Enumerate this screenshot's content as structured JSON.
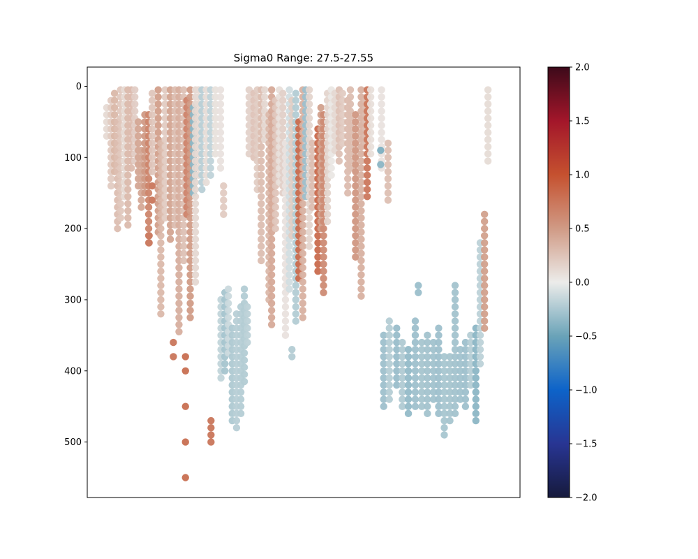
{
  "chart_data": {
    "type": "scatter",
    "title": "Sigma0 Range: 27.5-27.55",
    "xlabel": "",
    "ylabel": "",
    "yaxis_inverted": true,
    "ylim": [
      578,
      -27
    ],
    "xlim": [
      0,
      100
    ],
    "x_ticks": "none",
    "y_ticks": [
      0,
      100,
      200,
      300,
      400,
      500
    ],
    "y_tick_labels": [
      "0",
      "100",
      "200",
      "300",
      "400",
      "500"
    ],
    "grid": false,
    "colorbar": {
      "range": [
        -2.0,
        2.0
      ],
      "ticks": [
        2.0,
        1.5,
        1.0,
        0.5,
        0.0,
        -0.5,
        -1.0,
        -1.5,
        -2.0
      ],
      "tick_labels": [
        "2.0",
        "1.5",
        "1.0",
        "0.5",
        "0.0",
        "−0.5",
        "−1.0",
        "−1.5",
        "−2.0"
      ],
      "colormap": "diverging blue-white-red (balance)",
      "stops": [
        {
          "v": -2.0,
          "color": "#161a3c"
        },
        {
          "v": -1.5,
          "color": "#283593"
        },
        {
          "v": -1.0,
          "color": "#0d63c9"
        },
        {
          "v": -0.5,
          "color": "#6aa3b8"
        },
        {
          "v": 0.0,
          "color": "#ececea"
        },
        {
          "v": 0.5,
          "color": "#d09a85"
        },
        {
          "v": 1.0,
          "color": "#c5512f"
        },
        {
          "v": 1.5,
          "color": "#a3162a"
        },
        {
          "v": 2.0,
          "color": "#3d0a1a"
        }
      ]
    },
    "profiles": [
      {
        "x": 4.5,
        "top": 30,
        "bottom": 70,
        "value": 0.15
      },
      {
        "x": 5.5,
        "top": 20,
        "bottom": 140,
        "value": 0.2
      },
      {
        "x": 6.3,
        "top": 10,
        "bottom": 120,
        "value": 0.28
      },
      {
        "x": 7.0,
        "top": 50,
        "bottom": 200,
        "value": 0.3
      },
      {
        "x": 7.7,
        "top": 5,
        "bottom": 185,
        "value": 0.2
      },
      {
        "x": 8.6,
        "top": 5,
        "bottom": 160,
        "value": 0.15
      },
      {
        "x": 9.4,
        "top": 5,
        "bottom": 200,
        "value": 0.3
      },
      {
        "x": 10.2,
        "top": 5,
        "bottom": 120,
        "value": 0.25
      },
      {
        "x": 11.0,
        "top": 5,
        "bottom": 110,
        "value": 0.2
      },
      {
        "x": 11.8,
        "top": 50,
        "bottom": 140,
        "value": 0.4
      },
      {
        "x": 12.5,
        "top": 90,
        "bottom": 170,
        "value": 0.45
      },
      {
        "x": 13.3,
        "top": 40,
        "bottom": 150,
        "value": 0.5
      },
      {
        "x": 14.2,
        "top": 40,
        "bottom": 220,
        "value": 0.6
      },
      {
        "x": 15.0,
        "top": 10,
        "bottom": 120,
        "value": 0.25
      },
      {
        "x": 16.4,
        "top": 5,
        "bottom": 210,
        "value": 0.45
      },
      {
        "x": 17.0,
        "top": 80,
        "bottom": 320,
        "value": 0.35
      },
      {
        "x": 18.0,
        "top": 5,
        "bottom": 190,
        "value": 0.2
      },
      {
        "x": 19.2,
        "top": 5,
        "bottom": 220,
        "value": 0.4
      },
      {
        "x": 20.3,
        "top": 5,
        "bottom": 200,
        "value": 0.3
      },
      {
        "x": 21.2,
        "top": 5,
        "bottom": 350,
        "value": 0.35
      },
      {
        "x": 22.3,
        "top": 5,
        "bottom": 250,
        "value": 0.3
      },
      {
        "x": 23.0,
        "top": 20,
        "bottom": 180,
        "value": 0.65
      },
      {
        "x": 23.8,
        "top": 5,
        "bottom": 330,
        "value": 0.45
      },
      {
        "x": 24.5,
        "top": 30,
        "bottom": 150,
        "value": -0.35
      },
      {
        "x": 25.0,
        "top": 5,
        "bottom": 280,
        "value": 0.1
      },
      {
        "x": 25.7,
        "top": 5,
        "bottom": 130,
        "value": 0.15
      },
      {
        "x": 26.5,
        "top": 5,
        "bottom": 150,
        "value": -0.2
      },
      {
        "x": 27.5,
        "top": 5,
        "bottom": 140,
        "value": 0.05
      },
      {
        "x": 28.5,
        "top": 5,
        "bottom": 130,
        "value": -0.15
      },
      {
        "x": 29.6,
        "top": 5,
        "bottom": 100,
        "value": 0.05
      },
      {
        "x": 30.8,
        "top": 5,
        "bottom": 120,
        "value": 0.1
      },
      {
        "x": 31.5,
        "top": 140,
        "bottom": 180,
        "value": 0.2
      },
      {
        "x": 30.9,
        "top": 300,
        "bottom": 410,
        "value": -0.2
      },
      {
        "x": 31.8,
        "top": 290,
        "bottom": 400,
        "value": -0.25
      },
      {
        "x": 32.6,
        "top": 285,
        "bottom": 380,
        "value": -0.15
      },
      {
        "x": 33.5,
        "top": 340,
        "bottom": 470,
        "value": -0.2
      },
      {
        "x": 34.5,
        "top": 320,
        "bottom": 480,
        "value": -0.2
      },
      {
        "x": 35.5,
        "top": 310,
        "bottom": 460,
        "value": -0.25
      },
      {
        "x": 36.3,
        "top": 285,
        "bottom": 420,
        "value": -0.2
      },
      {
        "x": 37.0,
        "top": 310,
        "bottom": 360,
        "value": -0.2
      },
      {
        "x": 37.4,
        "top": 5,
        "bottom": 100,
        "value": 0.2
      },
      {
        "x": 38.5,
        "top": 10,
        "bottom": 100,
        "value": 0.25
      },
      {
        "x": 39.3,
        "top": 5,
        "bottom": 150,
        "value": 0.15
      },
      {
        "x": 40.2,
        "top": 5,
        "bottom": 250,
        "value": 0.3
      },
      {
        "x": 41.0,
        "top": 5,
        "bottom": 80,
        "value": 0.1
      },
      {
        "x": 42.0,
        "top": 40,
        "bottom": 300,
        "value": 0.35
      },
      {
        "x": 42.6,
        "top": 5,
        "bottom": 340,
        "value": 0.4
      },
      {
        "x": 43.5,
        "top": 20,
        "bottom": 200,
        "value": 0.2
      },
      {
        "x": 44.4,
        "top": 5,
        "bottom": 140,
        "value": 0.1
      },
      {
        "x": 45.2,
        "top": 10,
        "bottom": 150,
        "value": 0.15
      },
      {
        "x": 45.8,
        "top": 80,
        "bottom": 350,
        "value": 0.1
      },
      {
        "x": 46.7,
        "top": 5,
        "bottom": 290,
        "value": -0.1
      },
      {
        "x": 47.3,
        "top": 20,
        "bottom": 210,
        "value": 0.15
      },
      {
        "x": 48.2,
        "top": 10,
        "bottom": 330,
        "value": -0.2
      },
      {
        "x": 48.9,
        "top": 50,
        "bottom": 270,
        "value": 0.8
      },
      {
        "x": 49.8,
        "top": 5,
        "bottom": 330,
        "value": 0.4
      },
      {
        "x": 50.5,
        "top": 5,
        "bottom": 160,
        "value": -0.3
      },
      {
        "x": 51.3,
        "top": 5,
        "bottom": 230,
        "value": 0.1
      },
      {
        "x": 52.0,
        "top": 80,
        "bottom": 170,
        "value": 0.3
      },
      {
        "x": 53.3,
        "top": 60,
        "bottom": 260,
        "value": 0.8
      },
      {
        "x": 54.0,
        "top": 30,
        "bottom": 200,
        "value": 0.5
      },
      {
        "x": 54.6,
        "top": 40,
        "bottom": 290,
        "value": 0.6
      },
      {
        "x": 55.5,
        "top": 10,
        "bottom": 190,
        "value": 0.1
      },
      {
        "x": 56.4,
        "top": 5,
        "bottom": 130,
        "value": 0.05
      },
      {
        "x": 57.2,
        "top": 10,
        "bottom": 90,
        "value": 0.1
      },
      {
        "x": 58.2,
        "top": 5,
        "bottom": 110,
        "value": 0.3
      },
      {
        "x": 59.0,
        "top": 10,
        "bottom": 80,
        "value": 0.2
      },
      {
        "x": 60.2,
        "top": 20,
        "bottom": 150,
        "value": 0.25
      },
      {
        "x": 60.8,
        "top": 5,
        "bottom": 120,
        "value": 0.3
      },
      {
        "x": 62.0,
        "top": 40,
        "bottom": 240,
        "value": 0.5
      },
      {
        "x": 63.3,
        "top": 5,
        "bottom": 300,
        "value": 0.4
      },
      {
        "x": 64.3,
        "top": 20,
        "bottom": 80,
        "value": 0.3
      },
      {
        "x": 64.7,
        "top": 5,
        "bottom": 160,
        "value": 0.7
      },
      {
        "x": 65.5,
        "top": 5,
        "bottom": 100,
        "value": 0.1
      },
      {
        "x": 69.5,
        "top": 80,
        "bottom": 160,
        "value": 0.25
      },
      {
        "x": 68.0,
        "top": 5,
        "bottom": 120,
        "value": 0.1
      },
      {
        "x": 68.5,
        "top": 350,
        "bottom": 450,
        "value": -0.3
      },
      {
        "x": 69.8,
        "top": 330,
        "bottom": 440,
        "value": -0.25
      },
      {
        "x": 71.5,
        "top": 340,
        "bottom": 420,
        "value": -0.3
      },
      {
        "x": 72.8,
        "top": 360,
        "bottom": 450,
        "value": -0.25
      },
      {
        "x": 74.2,
        "top": 370,
        "bottom": 460,
        "value": -0.3
      },
      {
        "x": 75.8,
        "top": 330,
        "bottom": 450,
        "value": -0.3
      },
      {
        "x": 76.5,
        "top": 280,
        "bottom": 290,
        "value": -0.35
      },
      {
        "x": 77.3,
        "top": 360,
        "bottom": 450,
        "value": -0.25
      },
      {
        "x": 78.6,
        "top": 350,
        "bottom": 460,
        "value": -0.3
      },
      {
        "x": 80.0,
        "top": 360,
        "bottom": 440,
        "value": -0.25
      },
      {
        "x": 81.2,
        "top": 340,
        "bottom": 460,
        "value": -0.3
      },
      {
        "x": 82.5,
        "top": 380,
        "bottom": 490,
        "value": -0.3
      },
      {
        "x": 83.8,
        "top": 380,
        "bottom": 470,
        "value": -0.25
      },
      {
        "x": 85.0,
        "top": 280,
        "bottom": 460,
        "value": -0.3
      },
      {
        "x": 86.2,
        "top": 370,
        "bottom": 440,
        "value": -0.25
      },
      {
        "x": 87.4,
        "top": 360,
        "bottom": 450,
        "value": -0.3
      },
      {
        "x": 88.6,
        "top": 350,
        "bottom": 420,
        "value": -0.25
      },
      {
        "x": 89.8,
        "top": 340,
        "bottom": 470,
        "value": -0.35
      },
      {
        "x": 90.8,
        "top": 220,
        "bottom": 390,
        "value": -0.2
      },
      {
        "x": 91.8,
        "top": 180,
        "bottom": 340,
        "value": 0.5
      },
      {
        "x": 92.6,
        "top": 5,
        "bottom": 110,
        "value": 0.1
      }
    ],
    "points": [
      {
        "x": 15.0,
        "y": 140,
        "value": 0.7
      },
      {
        "x": 15.0,
        "y": 160,
        "value": 0.7
      },
      {
        "x": 14.3,
        "y": 210,
        "value": 0.7
      },
      {
        "x": 14.3,
        "y": 220,
        "value": 0.7
      },
      {
        "x": 19.9,
        "y": 360,
        "value": 0.7
      },
      {
        "x": 19.9,
        "y": 380,
        "value": 0.7
      },
      {
        "x": 22.7,
        "y": 380,
        "value": 0.75
      },
      {
        "x": 22.7,
        "y": 400,
        "value": 0.75
      },
      {
        "x": 22.7,
        "y": 450,
        "value": 0.75
      },
      {
        "x": 22.7,
        "y": 500,
        "value": 0.75
      },
      {
        "x": 22.7,
        "y": 550,
        "value": 0.75
      },
      {
        "x": 28.6,
        "y": 470,
        "value": 0.7
      },
      {
        "x": 28.6,
        "y": 480,
        "value": 0.7
      },
      {
        "x": 28.6,
        "y": 490,
        "value": 0.7
      },
      {
        "x": 28.6,
        "y": 500,
        "value": 0.7
      },
      {
        "x": 47.3,
        "y": 370,
        "value": -0.2
      },
      {
        "x": 47.3,
        "y": 380,
        "value": -0.2
      },
      {
        "x": 67.8,
        "y": 90,
        "value": -0.4
      },
      {
        "x": 67.8,
        "y": 110,
        "value": -0.35
      }
    ]
  }
}
